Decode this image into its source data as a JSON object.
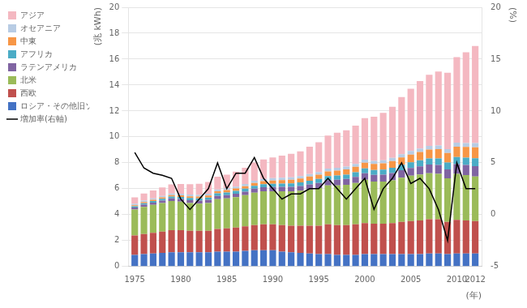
{
  "chart_data": {
    "type": "bar",
    "stacked": true,
    "xlabel": "(年)",
    "ylabel": "(兆 kWh)",
    "y2label": "(%)",
    "x": [
      1975,
      1976,
      1977,
      1978,
      1979,
      1980,
      1981,
      1982,
      1983,
      1984,
      1985,
      1986,
      1987,
      1988,
      1989,
      1990,
      1991,
      1992,
      1993,
      1994,
      1995,
      1996,
      1997,
      1998,
      1999,
      2000,
      2001,
      2002,
      2003,
      2004,
      2005,
      2006,
      2007,
      2008,
      2009,
      2010,
      2011,
      2012
    ],
    "xlim": [
      1974.3,
      2012.7
    ],
    "xticks": [
      1975,
      1980,
      1985,
      1990,
      1995,
      2000,
      2005,
      2010,
      2012
    ],
    "ylim": [
      0,
      20
    ],
    "yticks": [
      0,
      2,
      4,
      6,
      8,
      10,
      12,
      14,
      16,
      18,
      20
    ],
    "y2lim": [
      -5,
      20
    ],
    "y2ticks": [
      -5,
      0,
      5,
      10,
      15,
      20
    ],
    "grid": true,
    "legend": "upper left",
    "series": [
      {
        "name": "ロシア・その他旧ソ連諸国・東欧",
        "color": "#4472C4",
        "values": [
          0.9,
          0.95,
          1.0,
          1.05,
          1.1,
          1.1,
          1.1,
          1.1,
          1.1,
          1.15,
          1.15,
          1.15,
          1.2,
          1.25,
          1.25,
          1.25,
          1.15,
          1.1,
          1.05,
          1.0,
          0.95,
          0.95,
          0.9,
          0.9,
          0.9,
          0.95,
          0.95,
          0.95,
          0.95,
          0.95,
          0.95,
          0.95,
          1.0,
          1.0,
          0.95,
          1.0,
          1.0,
          1.0
        ]
      },
      {
        "name": "西欧",
        "color": "#C0504D",
        "values": [
          1.5,
          1.55,
          1.6,
          1.65,
          1.7,
          1.7,
          1.65,
          1.65,
          1.65,
          1.75,
          1.8,
          1.85,
          1.9,
          1.95,
          2.0,
          2.0,
          2.05,
          2.05,
          2.1,
          2.15,
          2.2,
          2.3,
          2.3,
          2.3,
          2.35,
          2.4,
          2.35,
          2.35,
          2.4,
          2.5,
          2.55,
          2.6,
          2.65,
          2.65,
          2.5,
          2.6,
          2.55,
          2.5
        ]
      },
      {
        "name": "北米",
        "color": "#9BBB59",
        "values": [
          2.0,
          2.1,
          2.15,
          2.2,
          2.25,
          2.2,
          2.15,
          2.1,
          2.15,
          2.3,
          2.3,
          2.35,
          2.4,
          2.5,
          2.55,
          2.55,
          2.6,
          2.65,
          2.7,
          2.8,
          2.9,
          3.0,
          3.05,
          3.1,
          3.2,
          3.35,
          3.25,
          3.25,
          3.3,
          3.4,
          3.5,
          3.55,
          3.55,
          3.5,
          3.35,
          3.55,
          3.5,
          3.45
        ]
      },
      {
        "name": "ラテンアメリカ",
        "color": "#8064A2",
        "values": [
          0.15,
          0.17,
          0.18,
          0.19,
          0.2,
          0.21,
          0.22,
          0.23,
          0.24,
          0.25,
          0.26,
          0.27,
          0.28,
          0.3,
          0.31,
          0.33,
          0.34,
          0.35,
          0.36,
          0.38,
          0.4,
          0.42,
          0.44,
          0.45,
          0.47,
          0.5,
          0.52,
          0.54,
          0.56,
          0.58,
          0.6,
          0.63,
          0.66,
          0.68,
          0.7,
          0.75,
          0.78,
          0.8
        ]
      },
      {
        "name": "アフリカ",
        "color": "#4BACC6",
        "values": [
          0.1,
          0.11,
          0.12,
          0.13,
          0.14,
          0.15,
          0.16,
          0.17,
          0.18,
          0.19,
          0.2,
          0.21,
          0.22,
          0.23,
          0.24,
          0.25,
          0.26,
          0.27,
          0.28,
          0.29,
          0.3,
          0.31,
          0.33,
          0.34,
          0.35,
          0.37,
          0.38,
          0.39,
          0.4,
          0.42,
          0.44,
          0.46,
          0.48,
          0.5,
          0.52,
          0.55,
          0.57,
          0.6
        ]
      },
      {
        "name": "中東",
        "color": "#F79646",
        "values": [
          0.08,
          0.09,
          0.1,
          0.11,
          0.12,
          0.13,
          0.14,
          0.15,
          0.16,
          0.17,
          0.18,
          0.19,
          0.2,
          0.22,
          0.24,
          0.26,
          0.27,
          0.28,
          0.3,
          0.32,
          0.34,
          0.36,
          0.38,
          0.4,
          0.42,
          0.44,
          0.46,
          0.48,
          0.52,
          0.56,
          0.6,
          0.64,
          0.68,
          0.72,
          0.74,
          0.8,
          0.82,
          0.85
        ]
      },
      {
        "name": "オセアニア",
        "color": "#B8CCE4",
        "values": [
          0.1,
          0.11,
          0.11,
          0.12,
          0.12,
          0.13,
          0.13,
          0.13,
          0.14,
          0.14,
          0.15,
          0.15,
          0.16,
          0.17,
          0.17,
          0.18,
          0.18,
          0.19,
          0.19,
          0.2,
          0.2,
          0.21,
          0.22,
          0.22,
          0.23,
          0.23,
          0.24,
          0.24,
          0.25,
          0.26,
          0.27,
          0.28,
          0.28,
          0.29,
          0.29,
          0.3,
          0.31,
          0.32
        ]
      },
      {
        "name": "アジア",
        "color": "#F4B8C1",
        "values": [
          0.5,
          0.55,
          0.6,
          0.65,
          0.7,
          0.75,
          0.8,
          0.85,
          0.9,
          0.98,
          1.05,
          1.15,
          1.25,
          1.4,
          1.5,
          1.6,
          1.7,
          1.8,
          1.9,
          2.1,
          2.3,
          2.55,
          2.7,
          2.8,
          2.95,
          3.2,
          3.4,
          3.65,
          3.95,
          4.4,
          4.8,
          5.2,
          5.5,
          5.7,
          5.9,
          6.6,
          7.0,
          7.5
        ]
      },
      {
        "name": "増加率(右軸)",
        "type": "line",
        "axis": "y2",
        "color": "#000000",
        "values": [
          6.0,
          4.5,
          4.0,
          3.8,
          3.5,
          1.5,
          0.5,
          1.5,
          2.5,
          5.0,
          2.5,
          4.0,
          4.0,
          5.5,
          3.5,
          2.5,
          1.5,
          2.0,
          2.0,
          2.5,
          2.5,
          3.5,
          2.5,
          1.5,
          2.5,
          3.5,
          0.5,
          2.5,
          3.5,
          5.0,
          3.0,
          3.5,
          2.5,
          0.5,
          -2.5,
          5.0,
          2.5,
          2.5
        ]
      }
    ]
  }
}
